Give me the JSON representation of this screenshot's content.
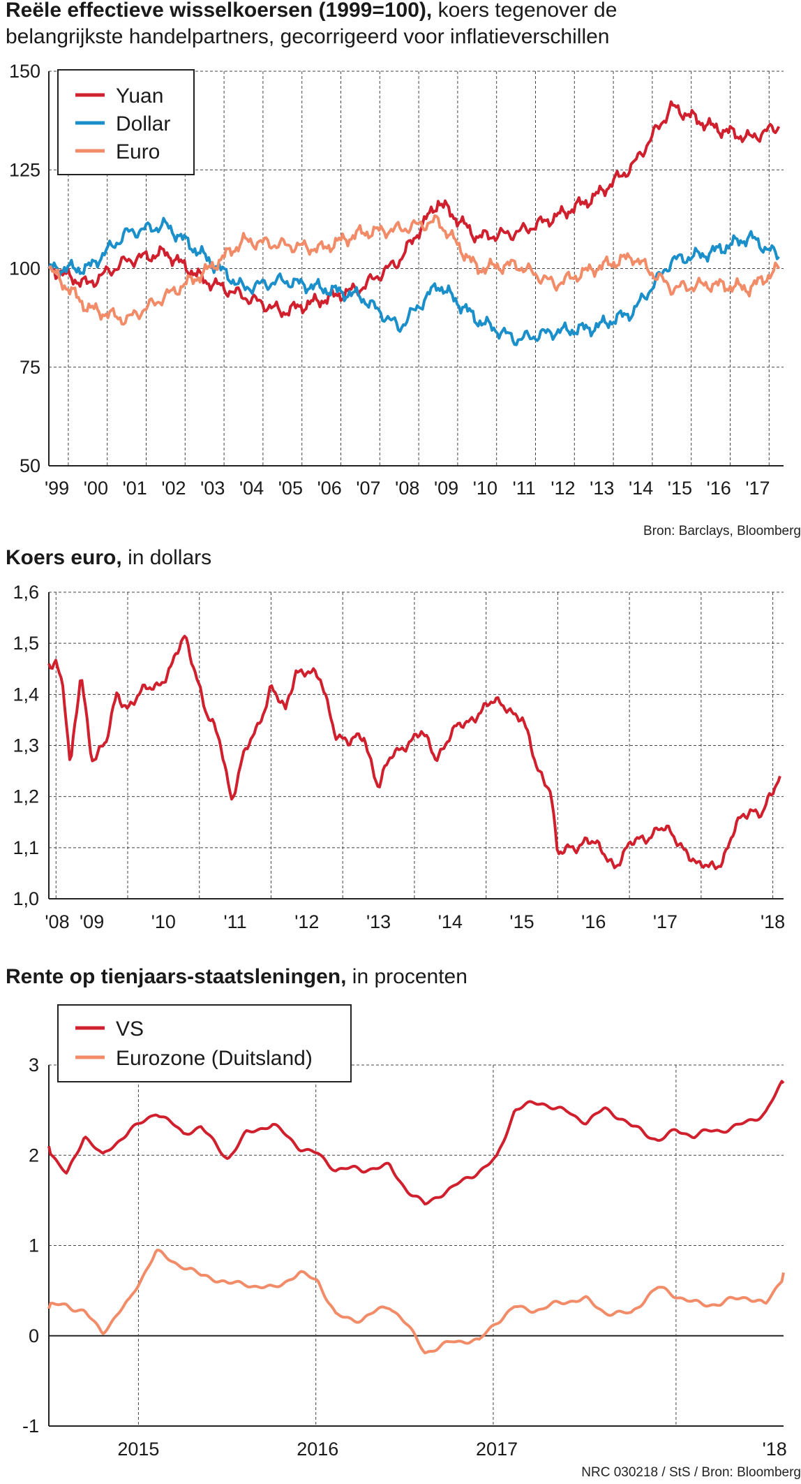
{
  "chart_data": [
    {
      "type": "line",
      "title": "Reële effectieve wisselkoersen (1999=100),",
      "subtitle_line1": "koers tegenover de",
      "subtitle_line2": "belangrijkste handelpartners, gecorrigeerd voor inflatieverschillen",
      "source": "Bron: Barclays, Bloomberg",
      "ylim": [
        50,
        150
      ],
      "yticks": [
        "150",
        "125",
        "100",
        "75",
        "50"
      ],
      "xticks": [
        "'99",
        "'00",
        "'01",
        "'02",
        "'03",
        "'04",
        "'05",
        "'06",
        "'07",
        "'08",
        "'09",
        "'10",
        "'11",
        "'12",
        "'13",
        "'14",
        "'15",
        "'16",
        "'17"
      ],
      "x": [
        1999.0,
        2000.0,
        2001.0,
        2002.0,
        2003.0,
        2004.0,
        2005.0,
        2006.0,
        2007.0,
        2008.0,
        2009.0,
        2010.0,
        2011.0,
        2012.0,
        2013.0,
        2014.0,
        2015.0,
        2016.0,
        2017.0,
        2017.75
      ],
      "series": [
        {
          "name": "Yuan",
          "color": "#d0202e",
          "values": [
            100,
            96,
            102,
            104,
            97,
            93,
            89,
            92,
            95,
            102,
            117,
            108,
            109,
            113,
            118,
            126,
            141,
            136,
            133,
            136
          ]
        },
        {
          "name": "Dollar",
          "color": "#1b8fca",
          "values": [
            100,
            100,
            109,
            111,
            103,
            95,
            97,
            95,
            93,
            85,
            96,
            87,
            82,
            84,
            85,
            89,
            102,
            104,
            108,
            103
          ]
        },
        {
          "name": "Euro",
          "color": "#f28c68",
          "values": [
            100,
            90,
            87,
            93,
            99,
            107,
            106,
            105,
            109,
            110,
            112,
            100,
            101,
            96,
            100,
            103,
            95,
            96,
            95,
            100
          ]
        }
      ]
    },
    {
      "type": "line",
      "title": "Koers euro,",
      "subtitle_line1": "in dollars",
      "ylim": [
        1.0,
        1.6
      ],
      "yticks": [
        "1,6",
        "1,5",
        "1,4",
        "1,3",
        "1,2",
        "1,1",
        "1,0"
      ],
      "xticks": [
        "'08",
        "'09",
        "'10",
        "'11",
        "'12",
        "'13",
        "'14",
        "'15",
        "'16",
        "'17",
        "'18"
      ],
      "x": [
        2007.9,
        2008.0,
        2008.1,
        2008.2,
        2008.35,
        2008.5,
        2008.7,
        2008.85,
        2009.0,
        2009.2,
        2009.4,
        2009.6,
        2009.8,
        2009.95,
        2010.1,
        2010.3,
        2010.45,
        2010.6,
        2010.8,
        2011.0,
        2011.2,
        2011.35,
        2011.5,
        2011.7,
        2011.9,
        2012.1,
        2012.3,
        2012.5,
        2012.7,
        2012.9,
        2013.1,
        2013.3,
        2013.5,
        2013.7,
        2013.9,
        2014.1,
        2014.3,
        2014.5,
        2014.7,
        2014.9,
        2015.0,
        2015.2,
        2015.4,
        2015.6,
        2015.8,
        2016.0,
        2016.2,
        2016.4,
        2016.6,
        2016.8,
        2016.95,
        2017.1,
        2017.3,
        2017.5,
        2017.7,
        2017.85,
        2018.0,
        2018.1
      ],
      "series": [
        {
          "name": "EUR/USD",
          "color": "#d0202e",
          "values": [
            1.46,
            1.47,
            1.42,
            1.25,
            1.44,
            1.28,
            1.3,
            1.4,
            1.38,
            1.4,
            1.42,
            1.45,
            1.51,
            1.45,
            1.36,
            1.3,
            1.2,
            1.27,
            1.33,
            1.42,
            1.36,
            1.45,
            1.45,
            1.42,
            1.33,
            1.3,
            1.32,
            1.22,
            1.28,
            1.31,
            1.32,
            1.28,
            1.32,
            1.34,
            1.37,
            1.38,
            1.38,
            1.35,
            1.26,
            1.22,
            1.08,
            1.1,
            1.12,
            1.09,
            1.07,
            1.1,
            1.12,
            1.14,
            1.12,
            1.1,
            1.06,
            1.06,
            1.08,
            1.14,
            1.18,
            1.17,
            1.2,
            1.24
          ]
        }
      ]
    },
    {
      "type": "line",
      "title": "Rente op tienjaars-staatsleningen,",
      "subtitle_line1": "in procenten",
      "source": "NRC 030218 / StS / Bron: Bloomberg",
      "ylim": [
        -1,
        3
      ],
      "yticks": [
        "3",
        "2",
        "1",
        "0",
        "-1"
      ],
      "xticks": [
        "2015",
        "2016",
        "2017",
        "'18"
      ],
      "x": [
        2014.0,
        2014.1,
        2014.2,
        2014.3,
        2014.45,
        2014.6,
        2014.75,
        2014.85,
        2015.0,
        2015.1,
        2015.25,
        2015.4,
        2015.5,
        2015.6,
        2015.75,
        2015.9,
        2016.0,
        2016.1,
        2016.25,
        2016.4,
        2016.5,
        2016.6,
        2016.75,
        2016.9,
        2017.0,
        2017.1,
        2017.25,
        2017.4,
        2017.5,
        2017.6,
        2017.75,
        2017.9,
        2018.0,
        2018.1
      ],
      "series": [
        {
          "name": "VS",
          "color": "#d0202e",
          "values": [
            2.1,
            1.8,
            2.2,
            1.95,
            2.3,
            2.5,
            2.2,
            2.3,
            2.0,
            2.25,
            2.3,
            2.1,
            2.05,
            1.85,
            1.8,
            1.9,
            1.65,
            1.45,
            1.6,
            1.85,
            2.0,
            2.5,
            2.55,
            2.5,
            2.4,
            2.5,
            2.3,
            2.2,
            2.3,
            2.2,
            2.25,
            2.4,
            2.5,
            2.8
          ]
        },
        {
          "name": "Eurozone (Duitsland)",
          "color": "#f28c68",
          "values": [
            0.3,
            0.35,
            0.3,
            0.05,
            0.35,
            0.95,
            0.8,
            0.65,
            0.55,
            0.6,
            0.55,
            0.65,
            0.6,
            0.25,
            0.2,
            0.3,
            0.1,
            -0.15,
            -0.05,
            -0.1,
            0.15,
            0.35,
            0.3,
            0.35,
            0.4,
            0.3,
            0.25,
            0.5,
            0.45,
            0.4,
            0.35,
            0.4,
            0.35,
            0.7
          ]
        }
      ]
    }
  ]
}
